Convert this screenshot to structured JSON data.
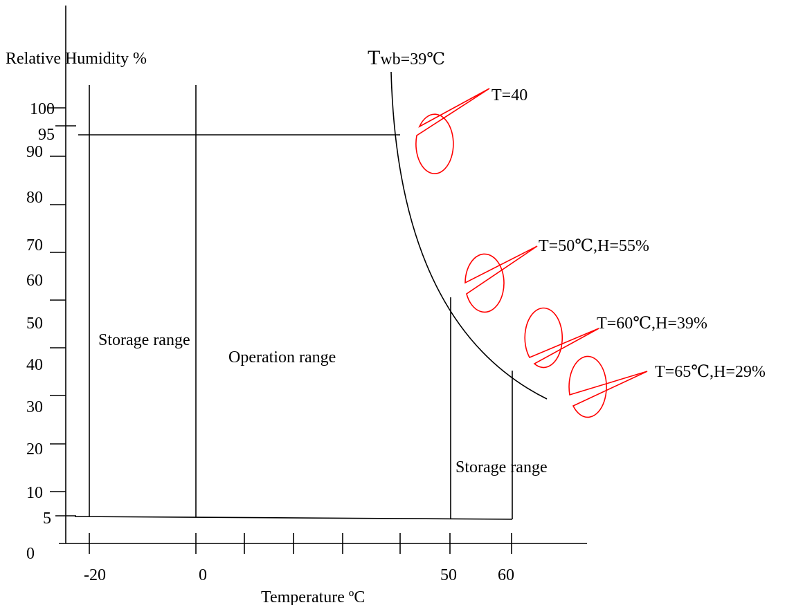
{
  "chart_data": {
    "type": "line",
    "title": "",
    "xlabel": "Temperature ºC",
    "ylabel": "Relative Humidity %",
    "x_tick_labels": [
      "-20",
      "0",
      "50",
      "60"
    ],
    "y_tick_labels": [
      "100",
      "95",
      "90",
      "80",
      "70",
      "60",
      "50",
      "40",
      "30",
      "20",
      "10",
      "5",
      "0"
    ],
    "curve_label": {
      "main": "T",
      "sub": "wb",
      "rest": "=39℃"
    },
    "regions": [
      {
        "label": "Storage range"
      },
      {
        "label": "Operation range"
      },
      {
        "label": "Storage range"
      }
    ],
    "callouts": [
      {
        "label": "T=40"
      },
      {
        "label": "T=50℃,H=55%"
      },
      {
        "label": "T=60℃,H=39%"
      },
      {
        "label": "T=65℃,H=29%"
      }
    ],
    "colors": {
      "callout": "#ff0000",
      "line": "#000000"
    }
  }
}
